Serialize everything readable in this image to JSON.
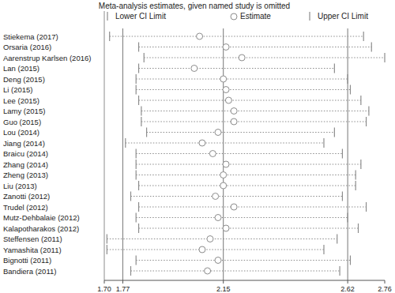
{
  "chart_data": {
    "type": "sensitivity",
    "title": "Meta-analysis estimates, given named study is omitted",
    "categories": [
      "Stiekema (2017)",
      "Orsaria (2016)",
      "Aarenstrup Karlsen (2016)",
      "Lan (2015)",
      "Deng (2015)",
      "Li (2015)",
      "Lee (2015)",
      "Lamy (2015)",
      "Guo (2015)",
      "Lou (2014)",
      "Jiang (2014)",
      "Braicu (2014)",
      "Zhang (2014)",
      "Zheng (2013)",
      "Liu (2013)",
      "Zanotti (2012)",
      "Trudel (2012)",
      "Mutz-Dehbalaie (2012)",
      "Kalapotharakos (2012)",
      "Steffensen (2011)",
      "Yamashita (2011)",
      "Bignotti (2011)",
      "Bandiera (2011)"
    ],
    "series": [
      {
        "name": "Lower CI Limit",
        "marker": "line",
        "values": [
          1.72,
          1.83,
          1.85,
          1.83,
          1.82,
          1.82,
          1.83,
          1.84,
          1.84,
          1.86,
          1.78,
          1.82,
          1.82,
          1.82,
          1.83,
          1.8,
          1.83,
          1.82,
          1.83,
          1.71,
          1.71,
          1.82,
          1.8
        ]
      },
      {
        "name": "Estimate",
        "marker": "circle",
        "values": [
          2.06,
          2.16,
          2.22,
          2.04,
          2.15,
          2.16,
          2.17,
          2.19,
          2.19,
          2.13,
          2.07,
          2.11,
          2.16,
          2.15,
          2.15,
          2.12,
          2.19,
          2.13,
          2.16,
          2.1,
          2.07,
          2.13,
          2.09
        ]
      },
      {
        "name": "Upper CI Limit",
        "marker": "line",
        "values": [
          2.68,
          2.71,
          2.76,
          2.57,
          2.62,
          2.63,
          2.67,
          2.7,
          2.69,
          2.57,
          2.53,
          2.6,
          2.67,
          2.65,
          2.65,
          2.6,
          2.69,
          2.62,
          2.66,
          2.58,
          2.53,
          2.63,
          2.59
        ]
      }
    ],
    "overall": {
      "lower": 1.77,
      "estimate": 2.15,
      "upper": 2.62
    },
    "xlim": [
      1.7,
      2.76
    ],
    "xticks": [
      {
        "value": 1.7,
        "label": "1.70"
      },
      {
        "value": 1.77,
        "label": "1.77"
      },
      {
        "value": 2.15,
        "label": "2.15"
      },
      {
        "value": 2.62,
        "label": "2.62"
      },
      {
        "value": 2.76,
        "label": "2.76"
      }
    ],
    "grid": false,
    "line_style": "dotted"
  }
}
